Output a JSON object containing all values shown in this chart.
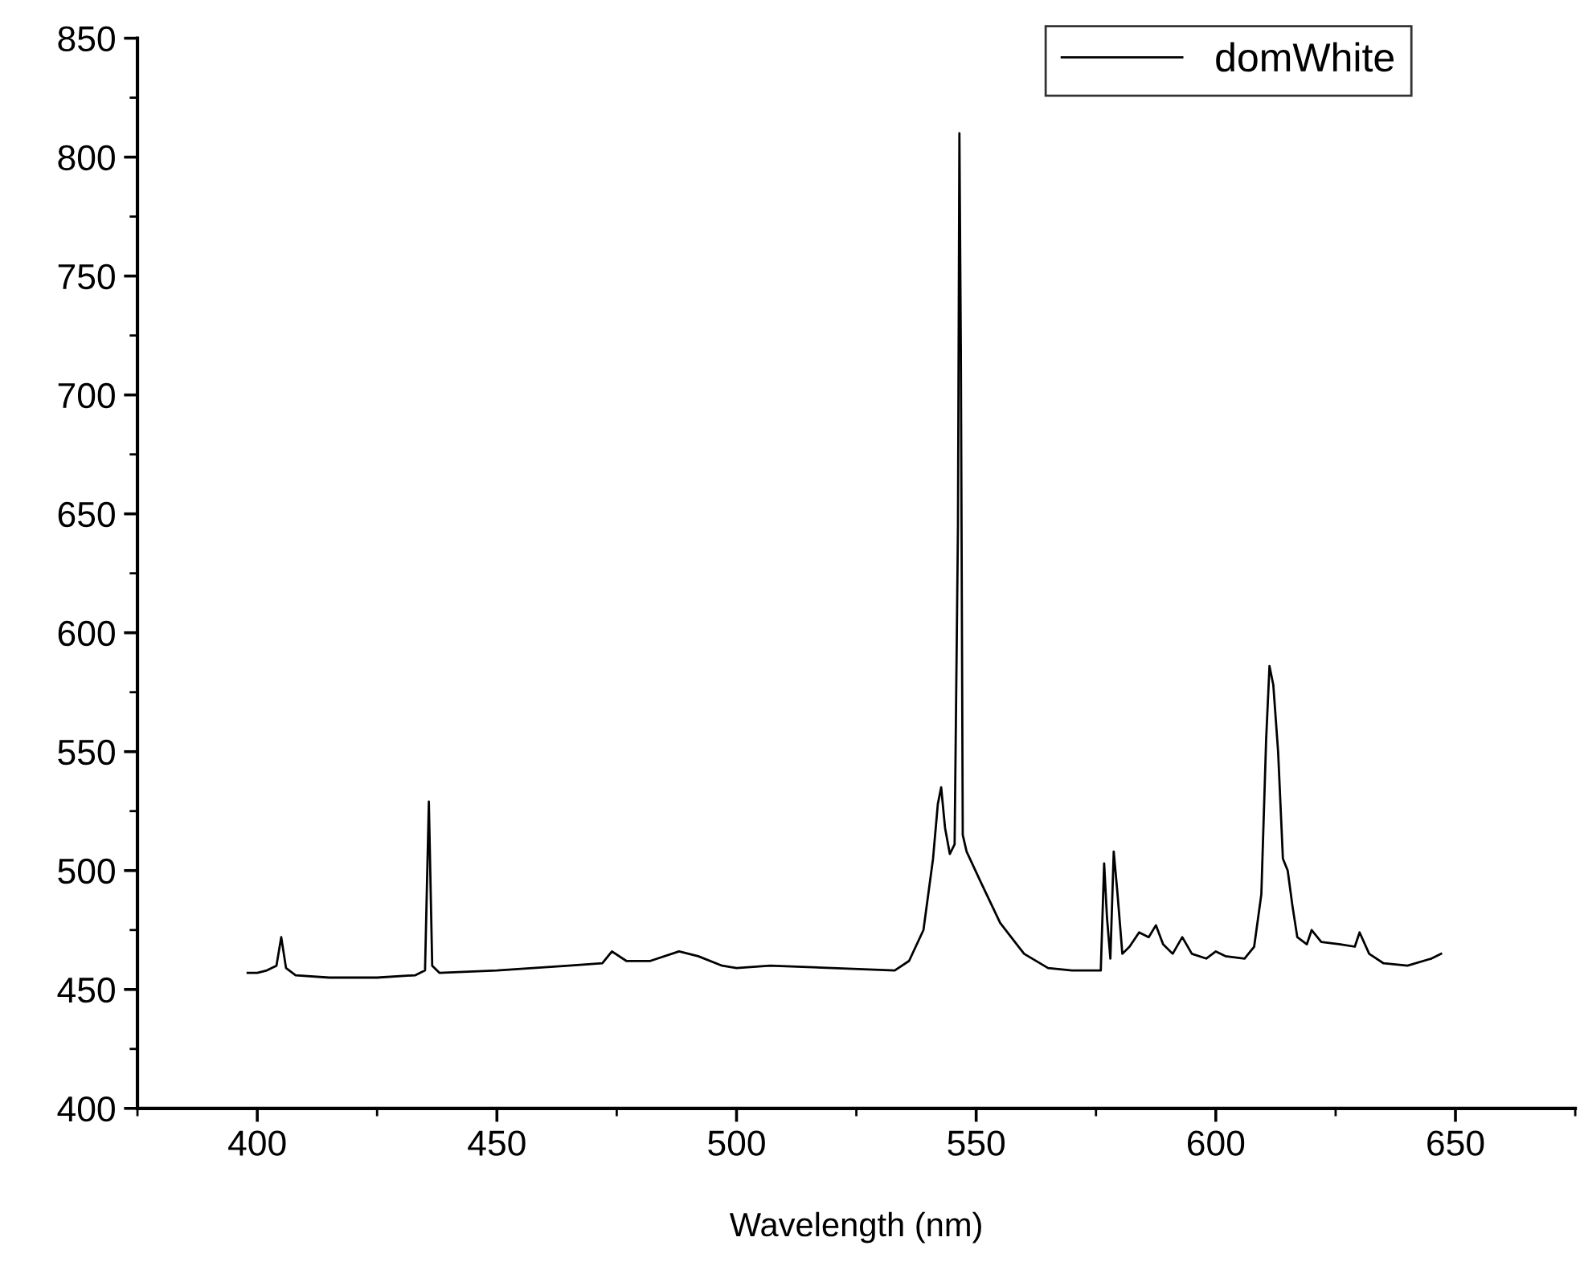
{
  "chart_data": {
    "type": "line",
    "xlabel": "Wavelength (nm)",
    "xlim": [
      375,
      675
    ],
    "xticks": [
      400,
      450,
      500,
      550,
      600,
      650
    ],
    "ylim": [
      400,
      850
    ],
    "yticks": [
      400,
      450,
      500,
      550,
      600,
      650,
      700,
      750,
      800,
      850
    ],
    "grid": false,
    "legend": "top right",
    "marker": "none",
    "line_style": "solid",
    "series": [
      {
        "name": "domWhite",
        "color": "#000000",
        "x": [
          398,
          400,
          402,
          404,
          405,
          406,
          408,
          415,
          425,
          433,
          435,
          435.8,
          436.5,
          438,
          450,
          465,
          472,
          474,
          477,
          482,
          488,
          492,
          497,
          500,
          507,
          520,
          533,
          536,
          539,
          541,
          542,
          542.7,
          543.5,
          544.5,
          545.5,
          546.2,
          546.5,
          546.8,
          547.2,
          548,
          551,
          555,
          560,
          565,
          570,
          576,
          576.7,
          577.3,
          578,
          578.7,
          579.5,
          580.5,
          582,
          584,
          586,
          587.5,
          589,
          591,
          593,
          595,
          598,
          600,
          602,
          606,
          608,
          609.5,
          610.5,
          611.2,
          612,
          613,
          614,
          615,
          616,
          617,
          619,
          620,
          622,
          626,
          629,
          630,
          632,
          635,
          640,
          645,
          647
        ],
        "values": [
          457,
          457,
          458,
          460,
          472,
          459,
          456,
          455,
          455,
          456,
          458,
          529,
          460,
          457,
          458,
          460,
          461,
          466,
          462,
          462,
          466,
          464,
          460,
          459,
          460,
          459,
          458,
          462,
          475,
          505,
          528,
          535,
          518,
          507,
          511,
          645,
          810,
          720,
          515,
          508,
          495,
          478,
          465,
          459,
          458,
          458,
          503,
          480,
          463,
          508,
          490,
          465,
          468,
          474,
          472,
          477,
          469,
          465,
          472,
          465,
          463,
          466,
          464,
          463,
          468,
          490,
          555,
          586,
          578,
          550,
          505,
          500,
          485,
          472,
          469,
          475,
          470,
          469,
          468,
          474,
          465,
          461,
          460,
          463,
          465
        ]
      }
    ]
  }
}
